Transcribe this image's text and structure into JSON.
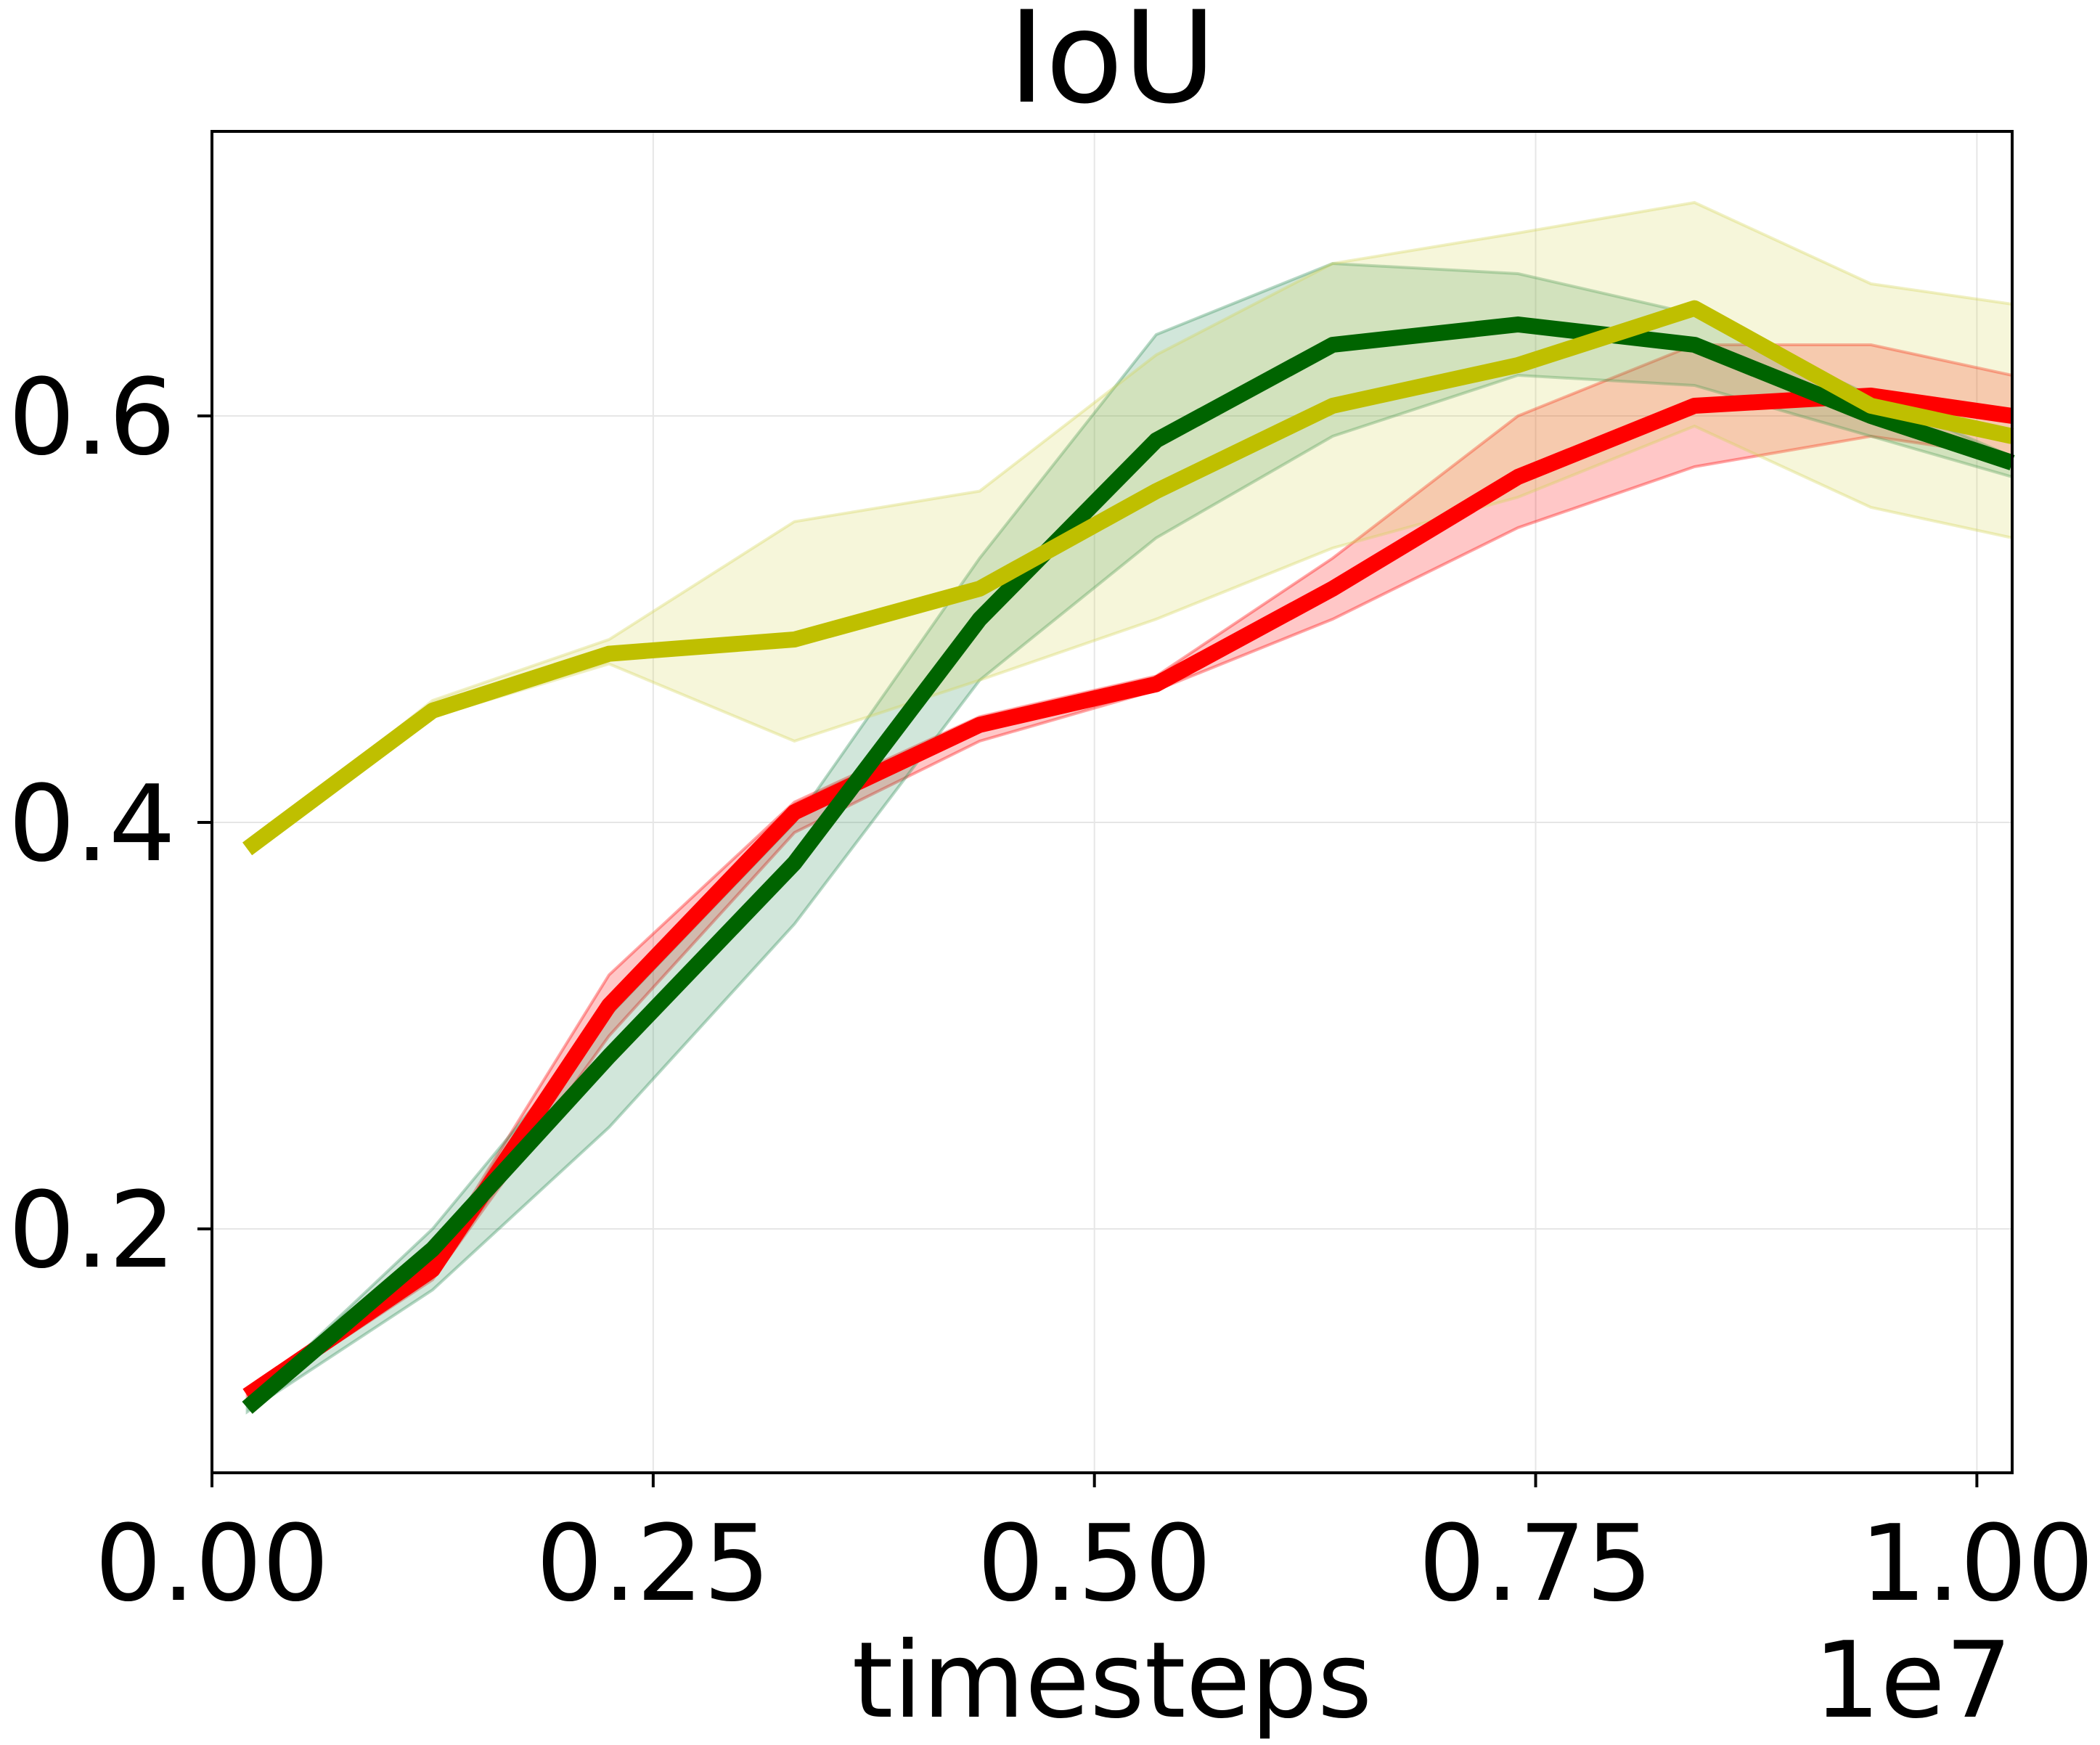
{
  "chart_data": {
    "type": "line",
    "title": "IoU",
    "xlabel": "timesteps",
    "ylabel": "",
    "x_offset_label": "1e7",
    "xlim": [
      0,
      1.02
    ],
    "ylim": [
      0.08,
      0.74
    ],
    "x_ticks": [
      0.0,
      0.25,
      0.5,
      0.75,
      1.0
    ],
    "x_tick_labels": [
      "0.00",
      "0.25",
      "0.50",
      "0.75",
      "1.00"
    ],
    "y_ticks": [
      0.2,
      0.4,
      0.6
    ],
    "y_tick_labels": [
      "0.2",
      "0.4",
      "0.6"
    ],
    "grid": true,
    "legend": false,
    "x": [
      0.02,
      0.125,
      0.225,
      0.33,
      0.435,
      0.535,
      0.635,
      0.74,
      0.84,
      0.94,
      1.02
    ],
    "series": [
      {
        "color": "#ff0000",
        "fill": "#ff0000",
        "values": [
          0.118,
          0.18,
          0.31,
          0.405,
          0.448,
          0.468,
          0.515,
          0.57,
          0.605,
          0.61,
          0.6
        ],
        "lower": [
          0.115,
          0.175,
          0.295,
          0.395,
          0.44,
          0.465,
          0.5,
          0.545,
          0.575,
          0.59,
          0.58
        ],
        "upper": [
          0.121,
          0.185,
          0.325,
          0.41,
          0.452,
          0.472,
          0.53,
          0.6,
          0.635,
          0.635,
          0.62
        ]
      },
      {
        "color": "#006400",
        "fill": "#2e8b57",
        "values": [
          0.112,
          0.19,
          0.285,
          0.38,
          0.5,
          0.588,
          0.635,
          0.645,
          0.635,
          0.6,
          0.577
        ],
        "lower": [
          0.11,
          0.17,
          0.25,
          0.35,
          0.47,
          0.54,
          0.59,
          0.62,
          0.615,
          0.59,
          0.57
        ],
        "upper": [
          0.114,
          0.2,
          0.305,
          0.4,
          0.53,
          0.64,
          0.675,
          0.67,
          0.65,
          0.61,
          0.58
        ]
      },
      {
        "color": "#bfbf00",
        "fill": "#d4d455",
        "values": [
          0.387,
          0.455,
          0.483,
          0.49,
          0.515,
          0.563,
          0.605,
          0.625,
          0.653,
          0.605,
          0.59
        ],
        "lower": [
          0.387,
          0.452,
          0.478,
          0.44,
          0.47,
          0.5,
          0.535,
          0.56,
          0.595,
          0.555,
          0.54
        ],
        "upper": [
          0.387,
          0.46,
          0.49,
          0.548,
          0.563,
          0.63,
          0.675,
          0.69,
          0.705,
          0.665,
          0.655
        ]
      }
    ]
  }
}
